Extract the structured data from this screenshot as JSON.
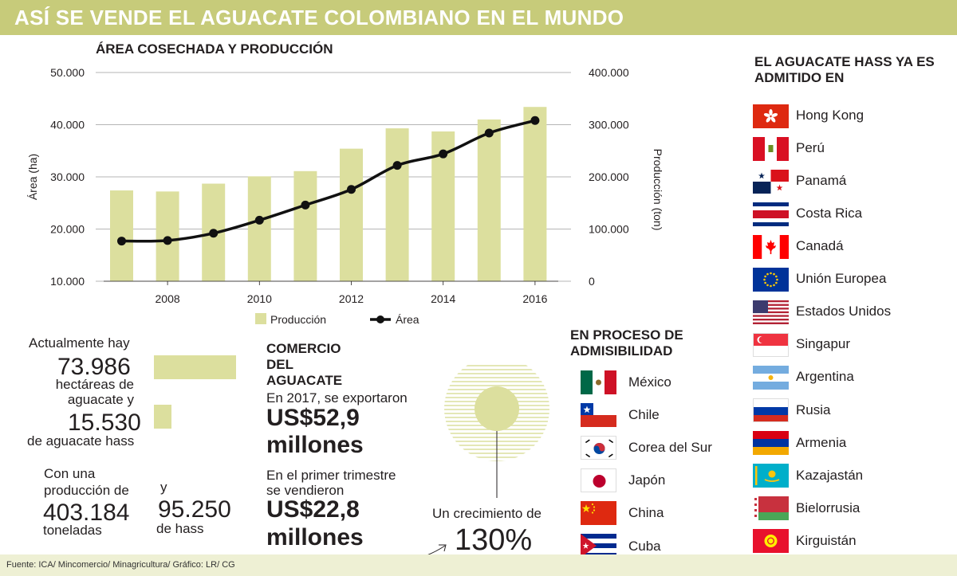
{
  "title": "ASÍ SE VENDE EL AGUACATE COLOMBIANO EN EL MUNDO",
  "chart_data": {
    "type": "bar+line",
    "title": "ÁREA COSECHADA Y PRODUCCIÓN",
    "x": [
      2007,
      2008,
      2009,
      2010,
      2011,
      2012,
      2013,
      2014,
      2015,
      2016
    ],
    "x_tick_labels": [
      "2008",
      "2010",
      "2012",
      "2014",
      "2016"
    ],
    "x_tick_values": [
      2008,
      2010,
      2012,
      2014,
      2016
    ],
    "series": [
      {
        "name": "Producción",
        "type": "bar",
        "axis": "right",
        "values": [
          174000,
          172000,
          187000,
          201000,
          211000,
          254000,
          293000,
          287000,
          310000,
          334000
        ]
      },
      {
        "name": "Área",
        "type": "line",
        "axis": "left",
        "values": [
          17700,
          17800,
          19200,
          21700,
          24600,
          27600,
          32200,
          34400,
          38400,
          40800
        ]
      }
    ],
    "ylabel_left": "Área (ha)",
    "ylim_left": [
      10000,
      50000
    ],
    "yticks_left": [
      "10.000",
      "20.000",
      "30.000",
      "40.000",
      "50.000"
    ],
    "ylabel_right": "Producción (ton)",
    "ylim_right": [
      0,
      400000
    ],
    "yticks_right": [
      "0",
      "100.000",
      "200.000",
      "300.000",
      "400.000"
    ],
    "legend": [
      "Producción",
      "Área"
    ],
    "legend_position": "bottom",
    "grid": true
  },
  "stats": {
    "intro": "Actualmente hay",
    "hectares": "73.986",
    "hectares_label": "hectáreas de aguacate y",
    "hass_hectares": "15.530",
    "hass_label": "de aguacate hass",
    "hectares_value": 73986,
    "hass_hectares_value": 15530,
    "production_intro": "Con una producción de",
    "production": "403.184",
    "production_unit": "toneladas",
    "and": "y",
    "hass_production": "95.250",
    "hass_production_label": "de hass"
  },
  "commerce": {
    "heading": "COMERCIO DEL AGUACATE",
    "line1": "En 2017, se exportaron",
    "amount1": "US$52,9",
    "amount1_unit": "millones",
    "line2a": "En el primer trimestre",
    "line2b": "se vendieron",
    "amount2": "US$22,8",
    "amount2_unit": "millones",
    "growth_label": "Un crecimiento de",
    "growth_value": "130%"
  },
  "process": {
    "heading": "EN PROCESO DE ADMISIBILIDAD",
    "countries": [
      "México",
      "Chile",
      "Corea del Sur",
      "Japón",
      "China",
      "Cuba"
    ]
  },
  "admitted": {
    "heading": "EL AGUACATE HASS YA ES ADMITIDO EN",
    "countries": [
      "Hong Kong",
      "Perú",
      "Panamá",
      "Costa Rica",
      "Canadá",
      "Unión Europea",
      "Estados Unidos",
      "Singapur",
      "Argentina",
      "Rusia",
      "Armenia",
      "Kazajastán",
      "Bielorrusia",
      "Kirguistán"
    ]
  },
  "source": "Fuente: ICA/ Mincomercio/ Minagricultura/ Gráfico: LR/ CG",
  "colors": {
    "bar": "#dcdf9e",
    "title_bar": "#c7cb7a",
    "line": "#111111",
    "text": "#231f20"
  }
}
